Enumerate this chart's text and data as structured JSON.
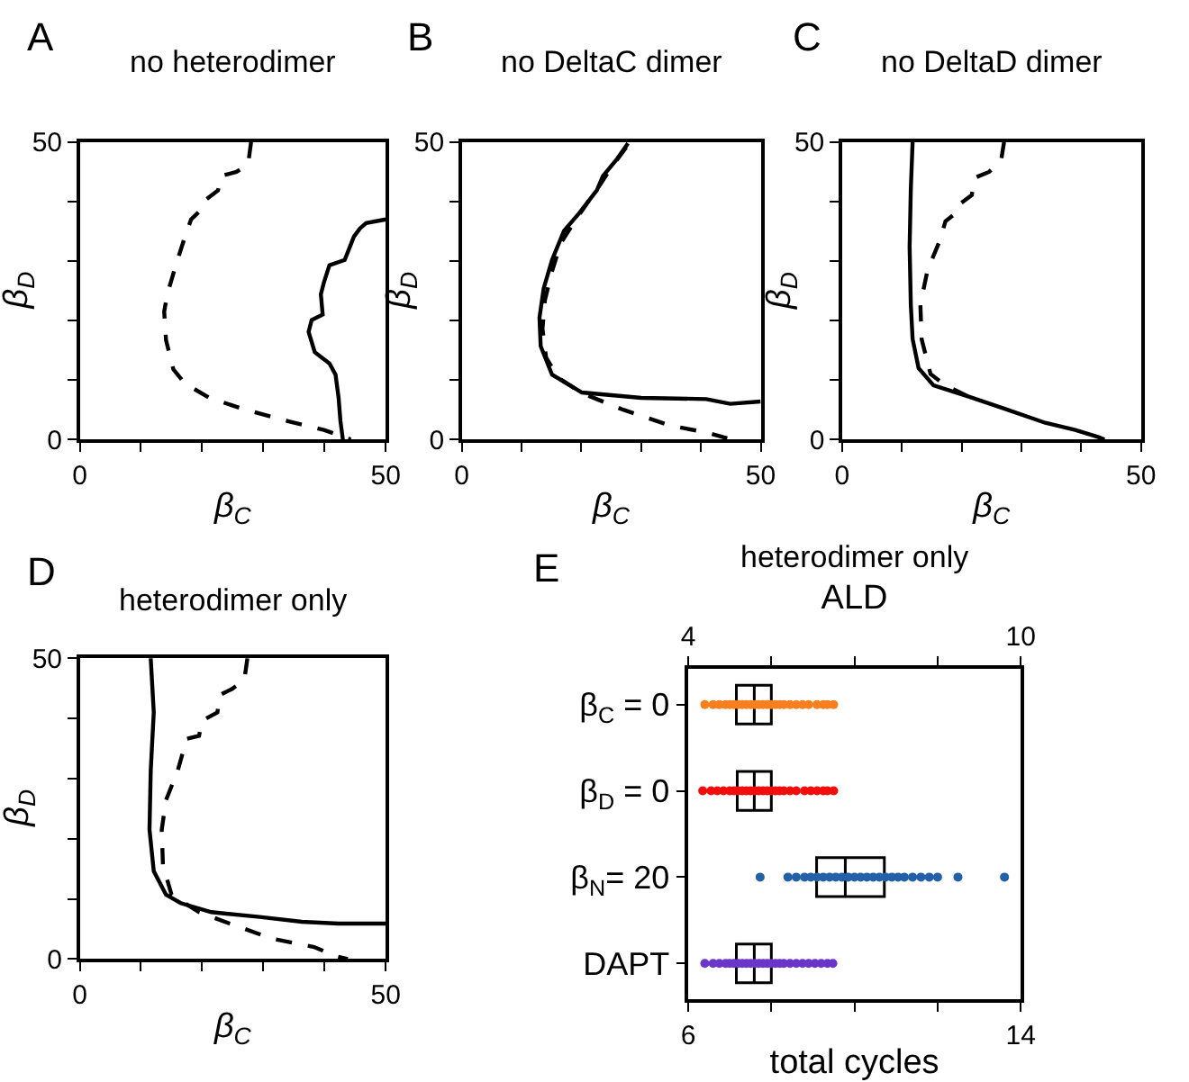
{
  "chart_data": [
    {
      "type": "line",
      "title": "no heterodimer",
      "annotations": [
        "A"
      ],
      "xlabel": "β$_{C}$",
      "ylabel": "β$_{D}$",
      "xlim": [
        0,
        50
      ],
      "ylim": [
        0,
        50
      ],
      "xticks": [
        0,
        {
          "value": 10,
          "label": null
        },
        {
          "value": 20,
          "label": null
        },
        {
          "value": 30,
          "label": null
        },
        {
          "value": 40,
          "label": null
        },
        50
      ],
      "yticks": [
        0,
        {
          "value": 10,
          "label": null
        },
        {
          "value": 20,
          "label": null
        },
        {
          "value": 30,
          "label": null
        },
        {
          "value": 40,
          "label": null
        },
        50
      ],
      "marker": "none",
      "series": [
        {
          "color": "#000000",
          "line_style": "dashed",
          "x": [
            28.0,
            27.5,
            25.6,
            23.1,
            22.6,
            20.7,
            20.2,
            18.2,
            17.2,
            15.7,
            14.3,
            13.8,
            14.1,
            15.3,
            17.2,
            21.2,
            27.1,
            34.0,
            39.9,
            43.3,
            44.3
          ],
          "values": [
            50,
            46.2,
            45,
            44.3,
            41.9,
            40.4,
            39,
            37,
            34.1,
            29.3,
            24.4,
            21.5,
            16.7,
            11.8,
            9.4,
            7.0,
            5.0,
            3.1,
            1.6,
            0.4,
            0
          ]
        },
        {
          "color": "#000000",
          "line_style": "solid",
          "x": [
            50,
            46.8,
            45.8,
            44.8,
            43.3,
            40.8,
            39.9,
            39.4,
            39.7,
            37.9,
            37.4,
            38.4,
            40.8,
            41.8,
            42.3,
            42.6,
            43.0
          ],
          "values": [
            37,
            36.4,
            35.5,
            34.1,
            30.2,
            29.3,
            26.4,
            24.4,
            21.0,
            20.1,
            18.1,
            14.7,
            12.8,
            10.9,
            7.0,
            3.1,
            0
          ]
        }
      ]
    },
    {
      "type": "line",
      "title": "no DeltaC dimer",
      "annotations": [
        "B"
      ],
      "xlabel": "β$_{C}$",
      "ylabel": "β$_{D}$",
      "xlim": [
        0,
        50
      ],
      "ylim": [
        0,
        50
      ],
      "xticks": [
        0,
        {
          "value": 10,
          "label": null
        },
        {
          "value": 20,
          "label": null
        },
        {
          "value": 30,
          "label": null
        },
        {
          "value": 40,
          "label": null
        },
        50
      ],
      "yticks": [
        0,
        {
          "value": 10,
          "label": null
        },
        {
          "value": 20,
          "label": null
        },
        {
          "value": 30,
          "label": null
        },
        {
          "value": 40,
          "label": null
        },
        50
      ],
      "marker": "none",
      "series": [
        {
          "color": "#000000",
          "line_style": "solid",
          "x": [
            27.8,
            26.0,
            23.6,
            22.6,
            19.6,
            17.1,
            15.1,
            13.7,
            13.0,
            13.2,
            15.1,
            20.1,
            30.0,
            40.9,
            44.9,
            50
          ],
          "values": [
            49.8,
            47.2,
            44.3,
            41.9,
            38,
            35.1,
            30.2,
            25.4,
            20.5,
            15.7,
            10.9,
            7.9,
            7.0,
            6.8,
            6.0,
            6.4
          ]
        },
        {
          "color": "#000000",
          "line_style": "dashed",
          "x": [
            27.5,
            25.0,
            23.1,
            19.1,
            16.6,
            15.1,
            13.9,
            13.5,
            14.1,
            16.1,
            20.1,
            27.0,
            35.0,
            40.9,
            44.4
          ],
          "values": [
            49.1,
            45.7,
            42.8,
            37,
            33.1,
            28.3,
            23.4,
            18.6,
            13.8,
            10.4,
            7.8,
            5.0,
            2.3,
            1.2,
            0.2
          ]
        }
      ]
    },
    {
      "type": "line",
      "title": "no DeltaD dimer",
      "annotations": [
        "C"
      ],
      "xlabel": "β$_{C}$",
      "ylabel": "β$_{D}$",
      "xlim": [
        0,
        50
      ],
      "ylim": [
        0,
        50
      ],
      "xticks": [
        0,
        {
          "value": 10,
          "label": null
        },
        {
          "value": 20,
          "label": null
        },
        {
          "value": 30,
          "label": null
        },
        {
          "value": 40,
          "label": null
        },
        50
      ],
      "yticks": [
        0,
        {
          "value": 10,
          "label": null
        },
        {
          "value": 20,
          "label": null
        },
        {
          "value": 30,
          "label": null
        },
        {
          "value": 40,
          "label": null
        },
        50
      ],
      "marker": "none",
      "series": [
        {
          "color": "#000000",
          "line_style": "solid",
          "x": [
            11.8,
            11.5,
            11.3,
            11.5,
            11.8,
            12.8,
            15.3,
            21.2,
            27.1,
            34.0,
            39.0,
            42.9,
            43.9
          ],
          "values": [
            50,
            42.1,
            32.4,
            22.7,
            16.9,
            12.0,
            9.1,
            7.2,
            5.2,
            2.8,
            1.6,
            0.4,
            0
          ]
        },
        {
          "color": "#000000",
          "line_style": "dashed",
          "x": [
            27.1,
            26.6,
            24.6,
            22.2,
            21.7,
            19.7,
            19.2,
            17.3,
            16.3,
            14.3,
            13.1,
            13.3,
            14.8,
            17.3,
            21.2
          ],
          "values": [
            50,
            46.9,
            45,
            44,
            41.1,
            39.6,
            38.2,
            36.7,
            33.3,
            28.5,
            22.7,
            16.9,
            11.0,
            9.1,
            7.2
          ]
        }
      ]
    },
    {
      "type": "line",
      "title": "heterodimer only",
      "annotations": [
        "D"
      ],
      "xlabel": "β$_{C}$",
      "ylabel": "β$_{D}$",
      "xlim": [
        0,
        50
      ],
      "ylim": [
        0,
        50
      ],
      "xticks": [
        0,
        {
          "value": 10,
          "label": null
        },
        {
          "value": 20,
          "label": null
        },
        {
          "value": 30,
          "label": null
        },
        {
          "value": 40,
          "label": null
        },
        50
      ],
      "yticks": [
        0,
        {
          "value": 10,
          "label": null
        },
        {
          "value": 20,
          "label": null
        },
        {
          "value": 30,
          "label": null
        },
        {
          "value": 40,
          "label": null
        },
        50
      ],
      "marker": "none",
      "series": [
        {
          "color": "#000000",
          "line_style": "solid",
          "x": [
            11.6,
            12.1,
            11.6,
            11.4,
            12.1,
            14.1,
            16.5,
            21.5,
            29.4,
            36.3,
            42.3,
            50
          ],
          "values": [
            50,
            41.0,
            31.3,
            21.5,
            14.6,
            10.7,
            9.3,
            7.8,
            7.0,
            6.2,
            5.9,
            5.9
          ]
        },
        {
          "color": "#000000",
          "line_style": "dashed",
          "x": [
            27.4,
            26.9,
            24.9,
            22.9,
            22.5,
            20.0,
            19.5,
            17.5,
            16.0,
            14.1,
            13.4,
            13.6,
            15.0,
            19.5,
            24.5,
            31.4,
            38.3,
            41.8,
            43.8
          ],
          "values": [
            50,
            46.4,
            44.9,
            43.9,
            41.0,
            39.6,
            37.1,
            36.6,
            31.3,
            26.4,
            21.5,
            15.6,
            10.7,
            7.8,
            5.9,
            3.4,
            2.0,
            0.5,
            0
          ]
        }
      ]
    },
    {
      "type": "box",
      "orientation": "horizontal",
      "title": "heterodimer only",
      "annotations": [
        "E"
      ],
      "xlabel": "total cycles",
      "x2label": "ALD",
      "categories": [
        "β$_{C}$ = 0",
        "β$_{D}$ = 0",
        "β$_{N}$= 20",
        "DAPT"
      ],
      "xlim": [
        6,
        14
      ],
      "xticks": [
        6,
        {
          "value": 8,
          "label": null
        },
        {
          "value": 10,
          "label": null
        },
        {
          "value": 12,
          "label": null
        },
        14
      ],
      "x2lim": [
        4,
        10
      ],
      "x2ticks": [
        4,
        {
          "value": 5.5,
          "label": null
        },
        {
          "value": 7,
          "label": null
        },
        {
          "value": 8.5,
          "label": null
        },
        10
      ],
      "boxes": [
        {
          "q1": 7.16,
          "median": 7.59,
          "q3": 8.0
        },
        {
          "q1": 7.18,
          "median": 7.59,
          "q3": 8.0
        },
        {
          "q1": 9.09,
          "median": 9.78,
          "q3": 10.72
        },
        {
          "q1": 7.16,
          "median": 7.59,
          "q3": 8.0
        }
      ],
      "marker": "circle",
      "series": [
        {
          "type": "scatter",
          "color": "#f77f1e",
          "x": [
            "β$_{C}$ = 0",
            "β$_{C}$ = 0",
            "β$_{C}$ = 0",
            "β$_{C}$ = 0",
            "β$_{C}$ = 0",
            "β$_{C}$ = 0",
            "β$_{C}$ = 0",
            "β$_{C}$ = 0",
            "β$_{C}$ = 0",
            "β$_{C}$ = 0",
            "β$_{C}$ = 0",
            "β$_{C}$ = 0",
            "β$_{C}$ = 0",
            "β$_{C}$ = 0",
            "β$_{C}$ = 0",
            "β$_{C}$ = 0",
            "β$_{C}$ = 0",
            "β$_{C}$ = 0",
            "β$_{C}$ = 0",
            "β$_{C}$ = 0",
            "β$_{C}$ = 0",
            "β$_{C}$ = 0",
            "β$_{C}$ = 0",
            "β$_{C}$ = 0",
            "β$_{C}$ = 0",
            "β$_{C}$ = 0"
          ],
          "values": [
            6.4,
            6.6,
            6.75,
            6.9,
            7.0,
            7.1,
            7.2,
            7.3,
            7.4,
            7.5,
            7.6,
            7.7,
            7.8,
            7.9,
            8.0,
            8.1,
            8.2,
            8.3,
            8.45,
            8.6,
            8.75,
            8.9,
            9.1,
            9.25,
            9.35,
            9.5
          ]
        },
        {
          "type": "scatter",
          "color": "#f20d0d",
          "x": [
            "β$_{D}$ = 0",
            "β$_{D}$ = 0",
            "β$_{D}$ = 0",
            "β$_{D}$ = 0",
            "β$_{D}$ = 0",
            "β$_{D}$ = 0",
            "β$_{D}$ = 0",
            "β$_{D}$ = 0",
            "β$_{D}$ = 0",
            "β$_{D}$ = 0",
            "β$_{D}$ = 0",
            "β$_{D}$ = 0",
            "β$_{D}$ = 0",
            "β$_{D}$ = 0",
            "β$_{D}$ = 0",
            "β$_{D}$ = 0",
            "β$_{D}$ = 0",
            "β$_{D}$ = 0",
            "β$_{D}$ = 0",
            "β$_{D}$ = 0",
            "β$_{D}$ = 0",
            "β$_{D}$ = 0",
            "β$_{D}$ = 0",
            "β$_{D}$ = 0",
            "β$_{D}$ = 0",
            "β$_{D}$ = 0"
          ],
          "values": [
            6.35,
            6.55,
            6.7,
            6.85,
            7.0,
            7.1,
            7.2,
            7.3,
            7.4,
            7.5,
            7.6,
            7.7,
            7.8,
            7.9,
            8.0,
            8.1,
            8.2,
            8.3,
            8.45,
            8.6,
            8.8,
            8.95,
            9.1,
            9.25,
            9.35,
            9.5
          ]
        },
        {
          "type": "scatter",
          "color": "#2360a8",
          "x": [
            "β$_{N}$= 20",
            "β$_{N}$= 20",
            "β$_{N}$= 20",
            "β$_{N}$= 20",
            "β$_{N}$= 20",
            "β$_{N}$= 20",
            "β$_{N}$= 20",
            "β$_{N}$= 20",
            "β$_{N}$= 20",
            "β$_{N}$= 20",
            "β$_{N}$= 20",
            "β$_{N}$= 20",
            "β$_{N}$= 20",
            "β$_{N}$= 20",
            "β$_{N}$= 20",
            "β$_{N}$= 20",
            "β$_{N}$= 20",
            "β$_{N}$= 20",
            "β$_{N}$= 20",
            "β$_{N}$= 20",
            "β$_{N}$= 20",
            "β$_{N}$= 20",
            "β$_{N}$= 20",
            "β$_{N}$= 20",
            "β$_{N}$= 20",
            "β$_{N}$= 20"
          ],
          "values": [
            7.73,
            8.4,
            8.6,
            8.8,
            8.95,
            9.1,
            9.25,
            9.4,
            9.55,
            9.7,
            9.85,
            10.0,
            10.15,
            10.3,
            10.45,
            10.6,
            10.75,
            10.9,
            11.05,
            11.2,
            11.4,
            11.6,
            11.8,
            12.0,
            12.49,
            13.61
          ]
        },
        {
          "type": "scatter",
          "color": "#6a35c9",
          "x": [
            "DAPT",
            "DAPT",
            "DAPT",
            "DAPT",
            "DAPT",
            "DAPT",
            "DAPT",
            "DAPT",
            "DAPT",
            "DAPT",
            "DAPT",
            "DAPT",
            "DAPT",
            "DAPT",
            "DAPT",
            "DAPT",
            "DAPT",
            "DAPT",
            "DAPT",
            "DAPT",
            "DAPT",
            "DAPT",
            "DAPT",
            "DAPT",
            "DAPT",
            "DAPT"
          ],
          "values": [
            6.4,
            6.6,
            6.75,
            6.9,
            7.0,
            7.1,
            7.2,
            7.3,
            7.4,
            7.5,
            7.6,
            7.7,
            7.8,
            7.9,
            8.0,
            8.1,
            8.2,
            8.3,
            8.45,
            8.6,
            8.75,
            8.9,
            9.05,
            9.2,
            9.35,
            9.48
          ]
        }
      ]
    }
  ]
}
